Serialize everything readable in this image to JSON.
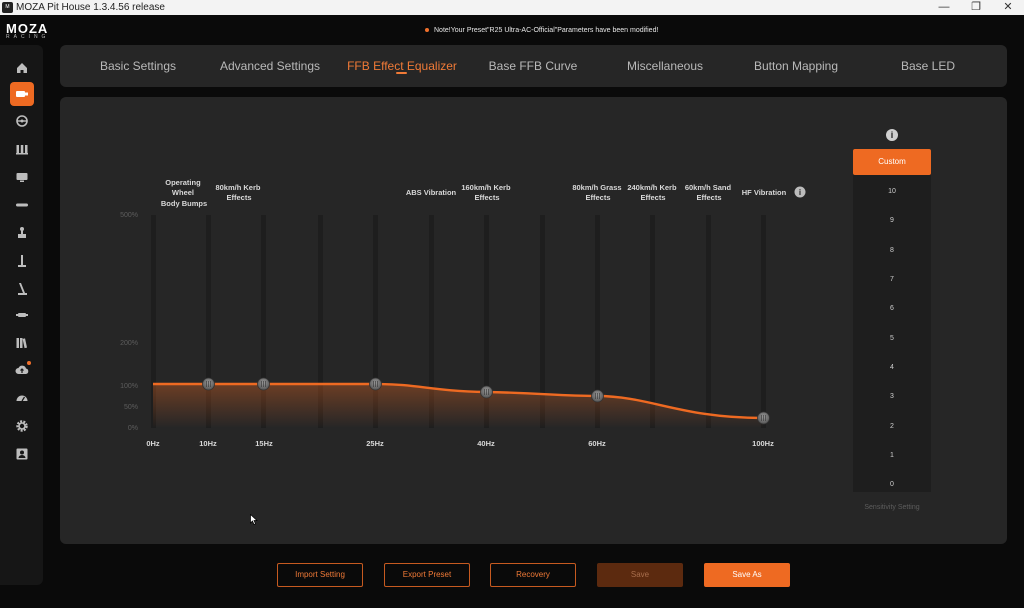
{
  "window": {
    "title": "MOZA Pit House 1.3.4.56 release",
    "minimize": "—",
    "restore": "❐",
    "close": "✕"
  },
  "logo": {
    "brand": "MOZA",
    "sub": "RACING"
  },
  "notice": "Note!Your Preset\"R25 Ultra-AC-Official\"Parameters have been modified!",
  "sidebar": {
    "items": [
      {
        "name": "home-icon",
        "active": false
      },
      {
        "name": "wheelbase-icon",
        "active": true
      },
      {
        "name": "steering-wheel-icon",
        "active": false
      },
      {
        "name": "pedals-icon",
        "active": false
      },
      {
        "name": "dashboard-icon",
        "active": false
      },
      {
        "name": "handbrake-bar-icon",
        "active": false
      },
      {
        "name": "shifter-icon",
        "active": false
      },
      {
        "name": "sequential-shifter-icon",
        "active": false
      },
      {
        "name": "handbrake-icon",
        "active": false
      },
      {
        "name": "hub-icon",
        "active": false
      },
      {
        "name": "library-icon",
        "active": false
      },
      {
        "name": "cloud-upload-icon",
        "active": false,
        "badge": true
      },
      {
        "name": "speedometer-icon",
        "active": false
      },
      {
        "name": "settings-gear-icon",
        "active": false
      },
      {
        "name": "user-profile-icon",
        "active": false
      }
    ]
  },
  "tabs": [
    {
      "label": "Basic Settings",
      "active": false
    },
    {
      "label": "Advanced Settings",
      "active": false
    },
    {
      "label": "FFB Effect Equalizer",
      "active": true
    },
    {
      "label": "Base FFB Curve",
      "active": false
    },
    {
      "label": "Miscellaneous",
      "active": false
    },
    {
      "label": "Button Mapping",
      "active": false
    },
    {
      "label": "Base LED",
      "active": false
    }
  ],
  "equalizer": {
    "y_labels": [
      "500%",
      "200%",
      "100%",
      "50%",
      "0%"
    ],
    "x_labels": [
      "0Hz",
      "10Hz",
      "15Hz",
      "25Hz",
      "40Hz",
      "60Hz",
      "100Hz"
    ],
    "bands": [
      {
        "label": [
          "Operating",
          "Wheel",
          "Body Bumps"
        ],
        "freq": "10Hz",
        "value": 100
      },
      {
        "label": [
          "80km/h Kerb",
          "Effects"
        ],
        "freq": "15Hz",
        "value": 100
      },
      {
        "label": [
          "ABS Vibration"
        ],
        "freq": "25Hz",
        "value": 100
      },
      {
        "label": [
          "160km/h Kerb",
          "Effects"
        ],
        "freq": "40Hz",
        "value": 80
      },
      {
        "label": [
          "80km/h Grass",
          "Effects"
        ],
        "freq": "60Hz",
        "value": 70
      },
      {
        "label": [
          "240km/h Kerb",
          "Effects"
        ],
        "freq": "",
        "value": null
      },
      {
        "label": [
          "60km/h Sand",
          "Effects"
        ],
        "freq": "",
        "value": null
      },
      {
        "label": [
          "HF Vibration"
        ],
        "freq": "100Hz",
        "value": 22
      }
    ],
    "info_icon": "i"
  },
  "sensitivity": {
    "selected": "Custom",
    "levels": [
      "10",
      "9",
      "8",
      "7",
      "6",
      "5",
      "4",
      "3",
      "2",
      "1",
      "0"
    ],
    "caption": "Sensitivity Setting",
    "info_icon": "i"
  },
  "buttons": {
    "import": "Import Setting",
    "export": "Export Preset",
    "recovery": "Recovery",
    "save": "Save",
    "save_as": "Save As"
  },
  "colors": {
    "accent": "#ee6a22",
    "panel": "#262626",
    "background": "#0a0a0a"
  }
}
